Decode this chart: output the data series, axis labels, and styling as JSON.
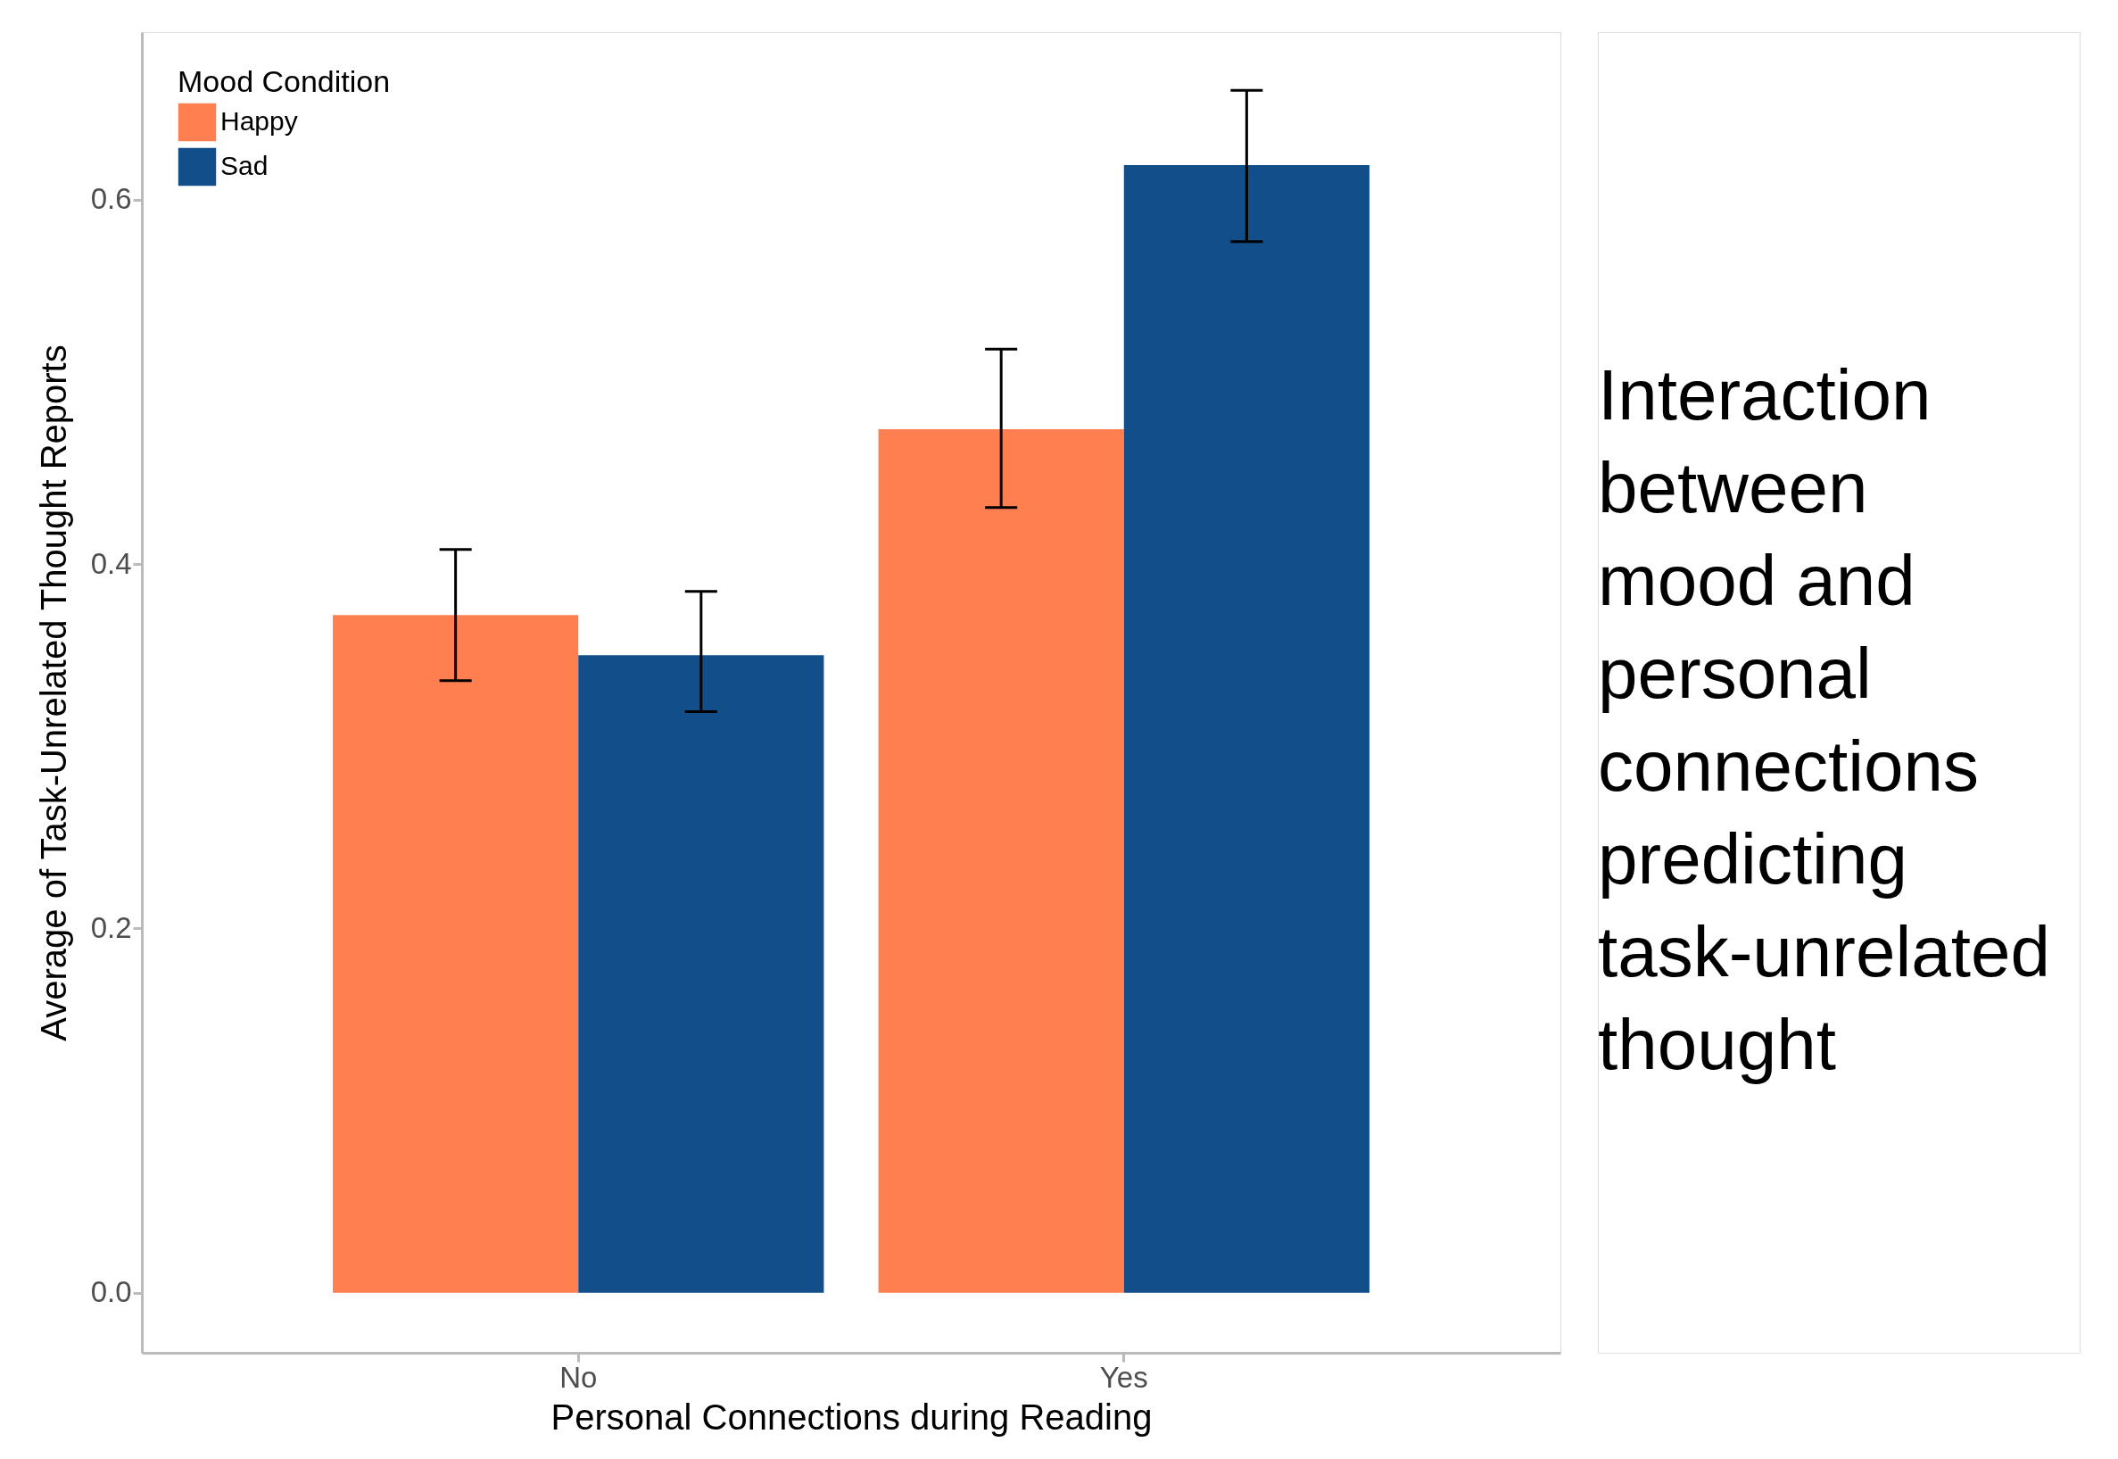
{
  "chart_data": {
    "type": "bar",
    "title": "Interaction between mood and personal connections predicting task-unrelated thought",
    "xlabel": "Personal Connections during Reading",
    "ylabel": "Average of Task-Unrelated Thought Reports",
    "legend_title": "Mood Condition",
    "categories": [
      "No",
      "Yes"
    ],
    "series": [
      {
        "name": "Happy",
        "color": "#ff7f50",
        "values": [
          0.372,
          0.474
        ],
        "errors": [
          [
            0.336,
            0.408
          ],
          [
            0.431,
            0.518
          ]
        ]
      },
      {
        "name": "Sad",
        "color": "#124e89",
        "values": [
          0.35,
          0.619
        ],
        "errors": [
          [
            0.319,
            0.385
          ],
          [
            0.577,
            0.66
          ]
        ]
      }
    ],
    "ylim": [
      -0.033,
      0.692
    ],
    "yticks": [
      {
        "value": 0,
        "label": "0.0"
      },
      {
        "value": 0.2,
        "label": "0.2"
      },
      {
        "value": 0.4,
        "label": "0.4"
      },
      {
        "value": 0.6,
        "label": "0.6"
      }
    ],
    "grid": false,
    "legend": "top left"
  }
}
